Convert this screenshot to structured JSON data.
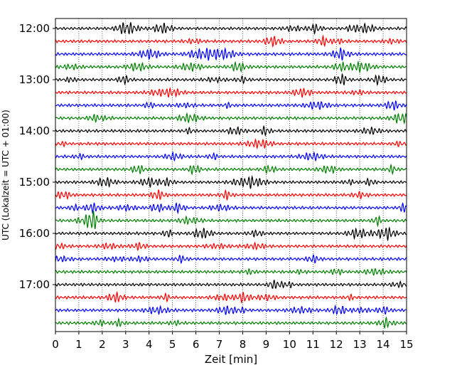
{
  "chart_data": {
    "type": "line",
    "xlabel": "Zeit  [min]",
    "ylabel": "UTC (Lokalzeit = UTC + 01:00)",
    "xlim": [
      0,
      15
    ],
    "x_ticks": [
      "0",
      "1",
      "2",
      "3",
      "4",
      "5",
      "6",
      "7",
      "8",
      "9",
      "10",
      "11",
      "12",
      "13",
      "14",
      "15"
    ],
    "y_ticks": [
      {
        "label": "12:00",
        "trace_index": 0
      },
      {
        "label": "13:00",
        "trace_index": 4
      },
      {
        "label": "14:00",
        "trace_index": 8
      },
      {
        "label": "15:00",
        "trace_index": 12
      },
      {
        "label": "16:00",
        "trace_index": 16
      },
      {
        "label": "17:00",
        "trace_index": 20
      }
    ],
    "traces_per_hour": 4,
    "trace_count": 24,
    "trace_colors": [
      "#000000",
      "#ff0000",
      "#0000ff",
      "#008000"
    ],
    "grid": {
      "vertical": true,
      "style": "dotted"
    }
  }
}
